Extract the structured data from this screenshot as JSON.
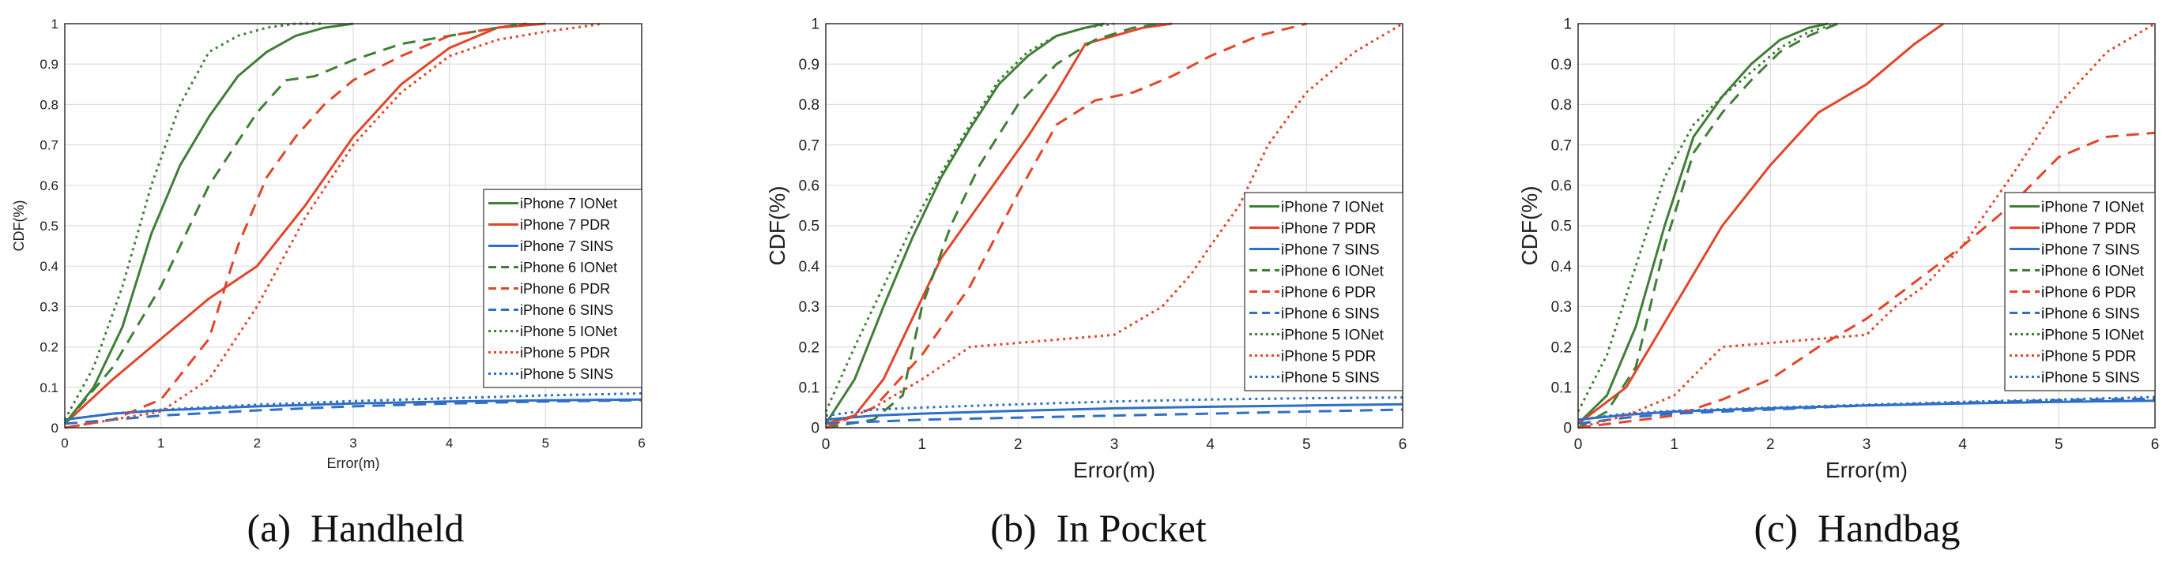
{
  "colors": {
    "green": "#3f7f36",
    "red": "#e2452a",
    "blue": "#2f6fc6"
  },
  "chart_data": [
    {
      "type": "line",
      "caption": "(a)  Handheld",
      "xlabel": "Error(m)",
      "ylabel": "CDF(%)",
      "xlim": [
        0,
        6
      ],
      "ylim": [
        0,
        1
      ],
      "xticks": [
        "0",
        "1",
        "2",
        "3",
        "4",
        "5",
        "6"
      ],
      "yticks": [
        "0",
        "0.1",
        "0.2",
        "0.3",
        "0.4",
        "0.5",
        "0.6",
        "0.7",
        "0.8",
        "0.9",
        "1"
      ],
      "grid": true,
      "legend_position": "center-right",
      "series": [
        {
          "name": "iPhone 7 IONet",
          "color": "green",
          "dash": "solid",
          "x": [
            0,
            0.3,
            0.6,
            0.9,
            1.2,
            1.5,
            1.8,
            2.1,
            2.4,
            2.7,
            3.0
          ],
          "y": [
            0.01,
            0.1,
            0.25,
            0.48,
            0.65,
            0.77,
            0.87,
            0.93,
            0.97,
            0.99,
            1.0
          ]
        },
        {
          "name": "iPhone 7 PDR",
          "color": "red",
          "dash": "solid",
          "x": [
            0,
            0.5,
            1.0,
            1.5,
            2.0,
            2.5,
            3.0,
            3.5,
            4.0,
            4.5,
            5.0
          ],
          "y": [
            0.01,
            0.12,
            0.22,
            0.32,
            0.4,
            0.55,
            0.72,
            0.85,
            0.94,
            0.99,
            1.0
          ]
        },
        {
          "name": "iPhone 7 SINS",
          "color": "blue",
          "dash": "solid",
          "x": [
            0,
            0.5,
            1,
            2,
            3,
            4,
            5,
            6
          ],
          "y": [
            0.02,
            0.035,
            0.043,
            0.053,
            0.06,
            0.065,
            0.068,
            0.07
          ]
        },
        {
          "name": "iPhone 6 IONet",
          "color": "green",
          "dash": "dashed",
          "x": [
            0,
            0.5,
            1.0,
            1.5,
            2.0,
            2.3,
            2.6,
            3.0,
            3.5,
            4.0,
            4.5,
            4.8
          ],
          "y": [
            0.01,
            0.15,
            0.35,
            0.6,
            0.78,
            0.86,
            0.87,
            0.91,
            0.95,
            0.97,
            0.99,
            1.0
          ]
        },
        {
          "name": "iPhone 6 PDR",
          "color": "red",
          "dash": "dashed",
          "x": [
            0,
            0.5,
            1.0,
            1.5,
            1.8,
            2.1,
            2.4,
            2.7,
            3.0,
            3.5,
            4.0,
            4.5,
            4.8
          ],
          "y": [
            0.0,
            0.02,
            0.07,
            0.22,
            0.45,
            0.62,
            0.72,
            0.8,
            0.86,
            0.92,
            0.97,
            0.99,
            1.0
          ]
        },
        {
          "name": "iPhone 6 SINS",
          "color": "blue",
          "dash": "dashed",
          "x": [
            0,
            0.5,
            1,
            2,
            3,
            4,
            5,
            6
          ],
          "y": [
            0.01,
            0.02,
            0.03,
            0.043,
            0.053,
            0.06,
            0.065,
            0.068
          ]
        },
        {
          "name": "iPhone 5 IONet",
          "color": "green",
          "dash": "dotted",
          "x": [
            0,
            0.3,
            0.6,
            0.9,
            1.2,
            1.5,
            1.8,
            2.1,
            2.4,
            2.7
          ],
          "y": [
            0.02,
            0.15,
            0.35,
            0.6,
            0.8,
            0.93,
            0.97,
            0.99,
            1.0,
            1.0
          ]
        },
        {
          "name": "iPhone 5 PDR",
          "color": "red",
          "dash": "dotted",
          "x": [
            0,
            1.0,
            1.5,
            2.0,
            2.5,
            3.0,
            3.5,
            4.0,
            4.5,
            5.0,
            5.6
          ],
          "y": [
            0.0,
            0.04,
            0.12,
            0.3,
            0.52,
            0.7,
            0.83,
            0.92,
            0.96,
            0.98,
            1.0
          ]
        },
        {
          "name": "iPhone 5 SINS",
          "color": "blue",
          "dash": "dotted",
          "x": [
            0,
            0.5,
            1,
            2,
            3,
            4,
            5,
            6
          ],
          "y": [
            0.02,
            0.035,
            0.045,
            0.057,
            0.066,
            0.073,
            0.08,
            0.085
          ]
        }
      ]
    },
    {
      "type": "line",
      "caption": "(b)  In Pocket",
      "xlabel": "Error(m)",
      "ylabel": "CDF(%)",
      "xlim": [
        0,
        6
      ],
      "ylim": [
        0,
        1
      ],
      "xticks": [
        "0",
        "1",
        "2",
        "3",
        "4",
        "5",
        "6"
      ],
      "yticks": [
        "0",
        "0.1",
        "0.2",
        "0.3",
        "0.4",
        "0.5",
        "0.6",
        "0.7",
        "0.8",
        "0.9",
        "1"
      ],
      "grid": true,
      "legend_position": "center-right",
      "series": [
        {
          "name": "iPhone 7 IONet",
          "color": "green",
          "dash": "solid",
          "x": [
            0,
            0.3,
            0.6,
            0.9,
            1.2,
            1.5,
            1.8,
            2.1,
            2.4,
            2.7,
            2.9
          ],
          "y": [
            0.01,
            0.12,
            0.3,
            0.47,
            0.62,
            0.74,
            0.85,
            0.92,
            0.97,
            0.99,
            1.0
          ]
        },
        {
          "name": "iPhone 7 PDR",
          "color": "red",
          "dash": "solid",
          "x": [
            0,
            0.3,
            0.6,
            0.9,
            1.2,
            1.5,
            1.8,
            2.1,
            2.4,
            2.7,
            3.0,
            3.3,
            3.6
          ],
          "y": [
            0.01,
            0.03,
            0.12,
            0.27,
            0.42,
            0.52,
            0.62,
            0.72,
            0.83,
            0.95,
            0.97,
            0.99,
            1.0
          ]
        },
        {
          "name": "iPhone 7 SINS",
          "color": "blue",
          "dash": "solid",
          "x": [
            0,
            0.5,
            1,
            2,
            3,
            4,
            5,
            6
          ],
          "y": [
            0.02,
            0.03,
            0.035,
            0.042,
            0.048,
            0.052,
            0.055,
            0.058
          ]
        },
        {
          "name": "iPhone 6 IONet",
          "color": "green",
          "dash": "dashed",
          "x": [
            0,
            0.5,
            0.8,
            1.0,
            1.3,
            1.6,
            2.0,
            2.4,
            2.8,
            3.2,
            3.5
          ],
          "y": [
            0.0,
            0.02,
            0.08,
            0.3,
            0.5,
            0.65,
            0.8,
            0.9,
            0.96,
            0.99,
            1.0
          ]
        },
        {
          "name": "iPhone 6 PDR",
          "color": "red",
          "dash": "dashed",
          "x": [
            0,
            0.5,
            1.0,
            1.5,
            2.0,
            2.4,
            2.8,
            3.2,
            3.6,
            4.0,
            4.5,
            5.0
          ],
          "y": [
            0.0,
            0.05,
            0.18,
            0.35,
            0.58,
            0.75,
            0.81,
            0.83,
            0.87,
            0.92,
            0.97,
            1.0
          ]
        },
        {
          "name": "iPhone 6 SINS",
          "color": "blue",
          "dash": "dashed",
          "x": [
            0,
            0.5,
            1,
            2,
            3,
            4,
            5,
            6
          ],
          "y": [
            0.01,
            0.015,
            0.02,
            0.025,
            0.03,
            0.035,
            0.04,
            0.045
          ]
        },
        {
          "name": "iPhone 5 IONet",
          "color": "green",
          "dash": "dotted",
          "x": [
            0,
            0.3,
            0.6,
            0.9,
            1.2,
            1.5,
            1.8,
            2.1,
            2.4,
            2.7,
            3.0
          ],
          "y": [
            0.04,
            0.2,
            0.35,
            0.5,
            0.63,
            0.75,
            0.86,
            0.93,
            0.97,
            0.99,
            1.0
          ]
        },
        {
          "name": "iPhone 5 PDR",
          "color": "red",
          "dash": "dotted",
          "x": [
            0,
            0.5,
            1.0,
            1.5,
            2.0,
            2.5,
            3.0,
            3.5,
            3.8,
            4.0,
            4.3,
            4.6,
            5.0,
            5.5,
            6.0
          ],
          "y": [
            0.0,
            0.05,
            0.12,
            0.2,
            0.21,
            0.22,
            0.23,
            0.3,
            0.38,
            0.45,
            0.55,
            0.7,
            0.83,
            0.93,
            1.0
          ]
        },
        {
          "name": "iPhone 5 SINS",
          "color": "blue",
          "dash": "dotted",
          "x": [
            0,
            0.5,
            1,
            2,
            3,
            4,
            5,
            6
          ],
          "y": [
            0.03,
            0.045,
            0.05,
            0.058,
            0.065,
            0.07,
            0.073,
            0.075
          ]
        }
      ]
    },
    {
      "type": "line",
      "caption": "(c)  Handbag",
      "xlabel": "Error(m)",
      "ylabel": "CDF(%)",
      "xlim": [
        0,
        6
      ],
      "ylim": [
        0,
        1
      ],
      "xticks": [
        "0",
        "1",
        "2",
        "3",
        "4",
        "5",
        "6"
      ],
      "yticks": [
        "0",
        "0.1",
        "0.2",
        "0.3",
        "0.4",
        "0.5",
        "0.6",
        "0.7",
        "0.8",
        "0.9",
        "1"
      ],
      "grid": true,
      "legend_position": "center-right",
      "series": [
        {
          "name": "iPhone 7 IONet",
          "color": "green",
          "dash": "solid",
          "x": [
            0,
            0.3,
            0.6,
            0.9,
            1.2,
            1.5,
            1.8,
            2.1,
            2.4,
            2.6
          ],
          "y": [
            0.01,
            0.08,
            0.25,
            0.5,
            0.72,
            0.82,
            0.9,
            0.96,
            0.99,
            1.0
          ]
        },
        {
          "name": "iPhone 7 PDR",
          "color": "red",
          "dash": "solid",
          "x": [
            0,
            0.5,
            1.0,
            1.5,
            2.0,
            2.5,
            3.0,
            3.5,
            3.8
          ],
          "y": [
            0.01,
            0.1,
            0.3,
            0.5,
            0.65,
            0.78,
            0.85,
            0.95,
            1.0
          ]
        },
        {
          "name": "iPhone 7 SINS",
          "color": "blue",
          "dash": "solid",
          "x": [
            0,
            0.5,
            1,
            2,
            3,
            4,
            5,
            6
          ],
          "y": [
            0.02,
            0.032,
            0.04,
            0.048,
            0.055,
            0.06,
            0.064,
            0.067
          ]
        },
        {
          "name": "iPhone 6 IONet",
          "color": "green",
          "dash": "dashed",
          "x": [
            0,
            0.3,
            0.6,
            0.9,
            1.2,
            1.5,
            1.8,
            2.1,
            2.4,
            2.7
          ],
          "y": [
            0.0,
            0.04,
            0.15,
            0.45,
            0.68,
            0.78,
            0.86,
            0.93,
            0.97,
            1.0
          ]
        },
        {
          "name": "iPhone 6 PDR",
          "color": "red",
          "dash": "dashed",
          "x": [
            0,
            1.0,
            1.5,
            2.0,
            2.5,
            3.0,
            3.5,
            4.0,
            4.5,
            5.0,
            5.5,
            6.0
          ],
          "y": [
            0.0,
            0.03,
            0.07,
            0.12,
            0.2,
            0.27,
            0.36,
            0.45,
            0.55,
            0.67,
            0.72,
            0.73
          ]
        },
        {
          "name": "iPhone 6 SINS",
          "color": "blue",
          "dash": "dashed",
          "x": [
            0,
            0.5,
            1,
            2,
            3,
            4,
            5,
            6
          ],
          "y": [
            0.01,
            0.025,
            0.035,
            0.045,
            0.055,
            0.062,
            0.068,
            0.072
          ]
        },
        {
          "name": "iPhone 5 IONet",
          "color": "green",
          "dash": "dotted",
          "x": [
            0,
            0.3,
            0.6,
            0.9,
            1.2,
            1.5,
            1.8,
            2.1,
            2.4,
            2.7
          ],
          "y": [
            0.04,
            0.18,
            0.4,
            0.62,
            0.75,
            0.82,
            0.88,
            0.94,
            0.98,
            1.0
          ]
        },
        {
          "name": "iPhone 5 PDR",
          "color": "red",
          "dash": "dotted",
          "x": [
            0,
            0.5,
            1.0,
            1.5,
            2.0,
            2.5,
            3.0,
            3.3,
            3.6,
            4.0,
            4.5,
            5.0,
            5.5,
            6.0
          ],
          "y": [
            0.0,
            0.03,
            0.08,
            0.2,
            0.21,
            0.22,
            0.23,
            0.3,
            0.35,
            0.45,
            0.62,
            0.8,
            0.93,
            1.0
          ]
        },
        {
          "name": "iPhone 5 SINS",
          "color": "blue",
          "dash": "dotted",
          "x": [
            0,
            0.5,
            1,
            2,
            3,
            4,
            5,
            6
          ],
          "y": [
            0.02,
            0.035,
            0.042,
            0.05,
            0.057,
            0.064,
            0.07,
            0.076
          ]
        }
      ]
    }
  ]
}
